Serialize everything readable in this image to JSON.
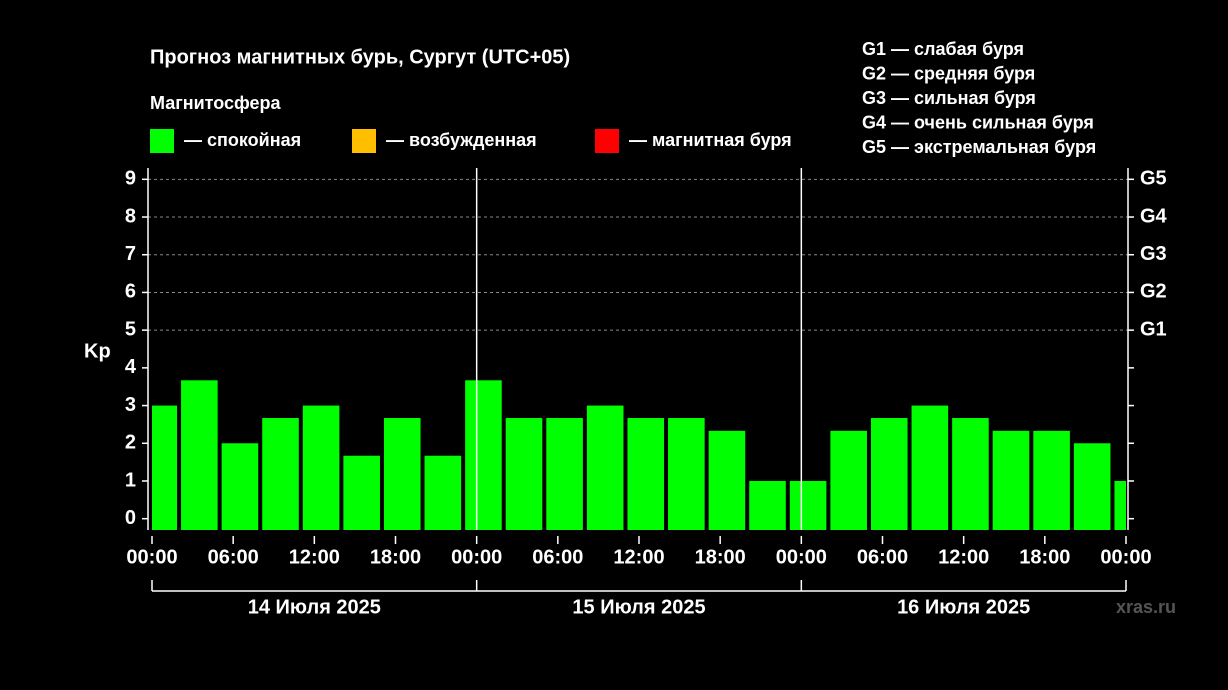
{
  "chart_data": {
    "type": "bar",
    "title": "Прогноз магнитных бурь, Сургут (UTC+05)",
    "ylabel": "Kp",
    "legend": {
      "title": "Магнитосфера",
      "items": [
        {
          "color": "#00ff00",
          "label": "— спокойная"
        },
        {
          "color": "#ffbf00",
          "label": "— возбужденная"
        },
        {
          "color": "#ff0000",
          "label": "— магнитная буря"
        }
      ]
    },
    "scale_notes": [
      "G1 — слабая буря",
      "G2 — средняя буря",
      "G3 — сильная буря",
      "G4 — очень сильная буря",
      "G5 — экстремальная буря"
    ],
    "series": [
      {
        "name": "Kp",
        "color": "#00ff00",
        "bar_width": 3,
        "x": [
          -1,
          2,
          5,
          8,
          11,
          14,
          17,
          20,
          23,
          26,
          29,
          32,
          35,
          38,
          41,
          44,
          47,
          50,
          53,
          56,
          59,
          62,
          65,
          68,
          71
        ],
        "values": [
          3,
          3.67,
          2,
          2.67,
          3,
          1.67,
          2.67,
          1.67,
          3.67,
          2.67,
          2.67,
          3,
          2.67,
          2.67,
          2.33,
          1,
          1,
          2.33,
          2.67,
          3,
          2.67,
          2.33,
          2.33,
          2,
          1
        ]
      }
    ],
    "xlim": [
      0,
      72
    ],
    "xticks": [
      {
        "value": 0,
        "label": "00:00"
      },
      {
        "value": 6,
        "label": "06:00"
      },
      {
        "value": 12,
        "label": "12:00"
      },
      {
        "value": 18,
        "label": "18:00"
      },
      {
        "value": 24,
        "label": "00:00"
      },
      {
        "value": 30,
        "label": "06:00"
      },
      {
        "value": 36,
        "label": "12:00"
      },
      {
        "value": 42,
        "label": "18:00"
      },
      {
        "value": 48,
        "label": "00:00"
      },
      {
        "value": 54,
        "label": "06:00"
      },
      {
        "value": 60,
        "label": "12:00"
      },
      {
        "value": 66,
        "label": "18:00"
      },
      {
        "value": 72,
        "label": "00:00"
      }
    ],
    "day_separators": [
      24,
      48
    ],
    "days": [
      "14 Июля 2025",
      "15 Июля 2025",
      "16 Июля 2025"
    ],
    "ylim": [
      -0.3,
      9.3
    ],
    "yticks": [
      0,
      1,
      2,
      3,
      4,
      5,
      6,
      7,
      8,
      9
    ],
    "y2lim": [
      -0.3,
      9.3
    ],
    "y2ticks": [
      {
        "value": 5,
        "label": "G1"
      },
      {
        "value": 6,
        "label": "G2"
      },
      {
        "value": 7,
        "label": "G3"
      },
      {
        "value": 8,
        "label": "G4"
      },
      {
        "value": 9,
        "label": "G5"
      }
    ],
    "grid": "y2",
    "watermark": "xras.ru"
  }
}
